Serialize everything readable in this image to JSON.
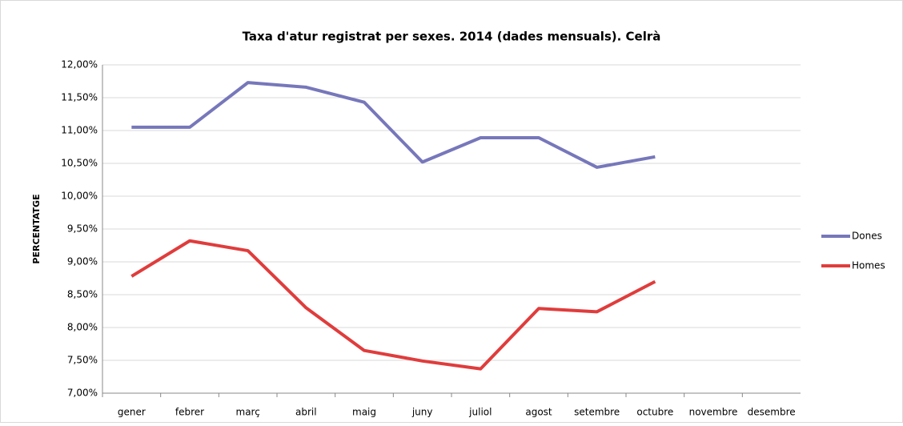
{
  "chart_data": {
    "type": "line",
    "title": "Taxa d'atur registrat per sexes. 2014 (dades mensuals). Celrà",
    "y_label": "PERCENTATGE",
    "categories": [
      "gener",
      "febrer",
      "març",
      "abril",
      "maig",
      "juny",
      "juliol",
      "agost",
      "setembre",
      "octubre",
      "novembre",
      "desembre"
    ],
    "series": [
      {
        "name": "Dones",
        "color": "#7777bb",
        "values": [
          11.05,
          11.05,
          11.73,
          11.66,
          11.43,
          10.52,
          10.89,
          10.89,
          10.44,
          10.6,
          null,
          null
        ]
      },
      {
        "name": "Homes",
        "color": "#e03c3c",
        "values": [
          8.78,
          9.32,
          9.17,
          8.3,
          7.65,
          7.49,
          7.37,
          8.29,
          8.24,
          8.7,
          null,
          null
        ]
      }
    ],
    "ylim": [
      7,
      12
    ],
    "yticks": [
      {
        "value": 7,
        "label": "7,00%"
      },
      {
        "value": 7.5,
        "label": "7,50%"
      },
      {
        "value": 8,
        "label": "8,00%"
      },
      {
        "value": 8.5,
        "label": "8,50%"
      },
      {
        "value": 9,
        "label": "9,00%"
      },
      {
        "value": 9.5,
        "label": "9,50%"
      },
      {
        "value": 10,
        "label": "10,00%"
      },
      {
        "value": 10.5,
        "label": "10,50%"
      },
      {
        "value": 11,
        "label": "11,00%"
      },
      {
        "value": 11.5,
        "label": "11,50%"
      },
      {
        "value": 12,
        "label": "12,00%"
      }
    ],
    "grid": true,
    "legend": "right"
  }
}
